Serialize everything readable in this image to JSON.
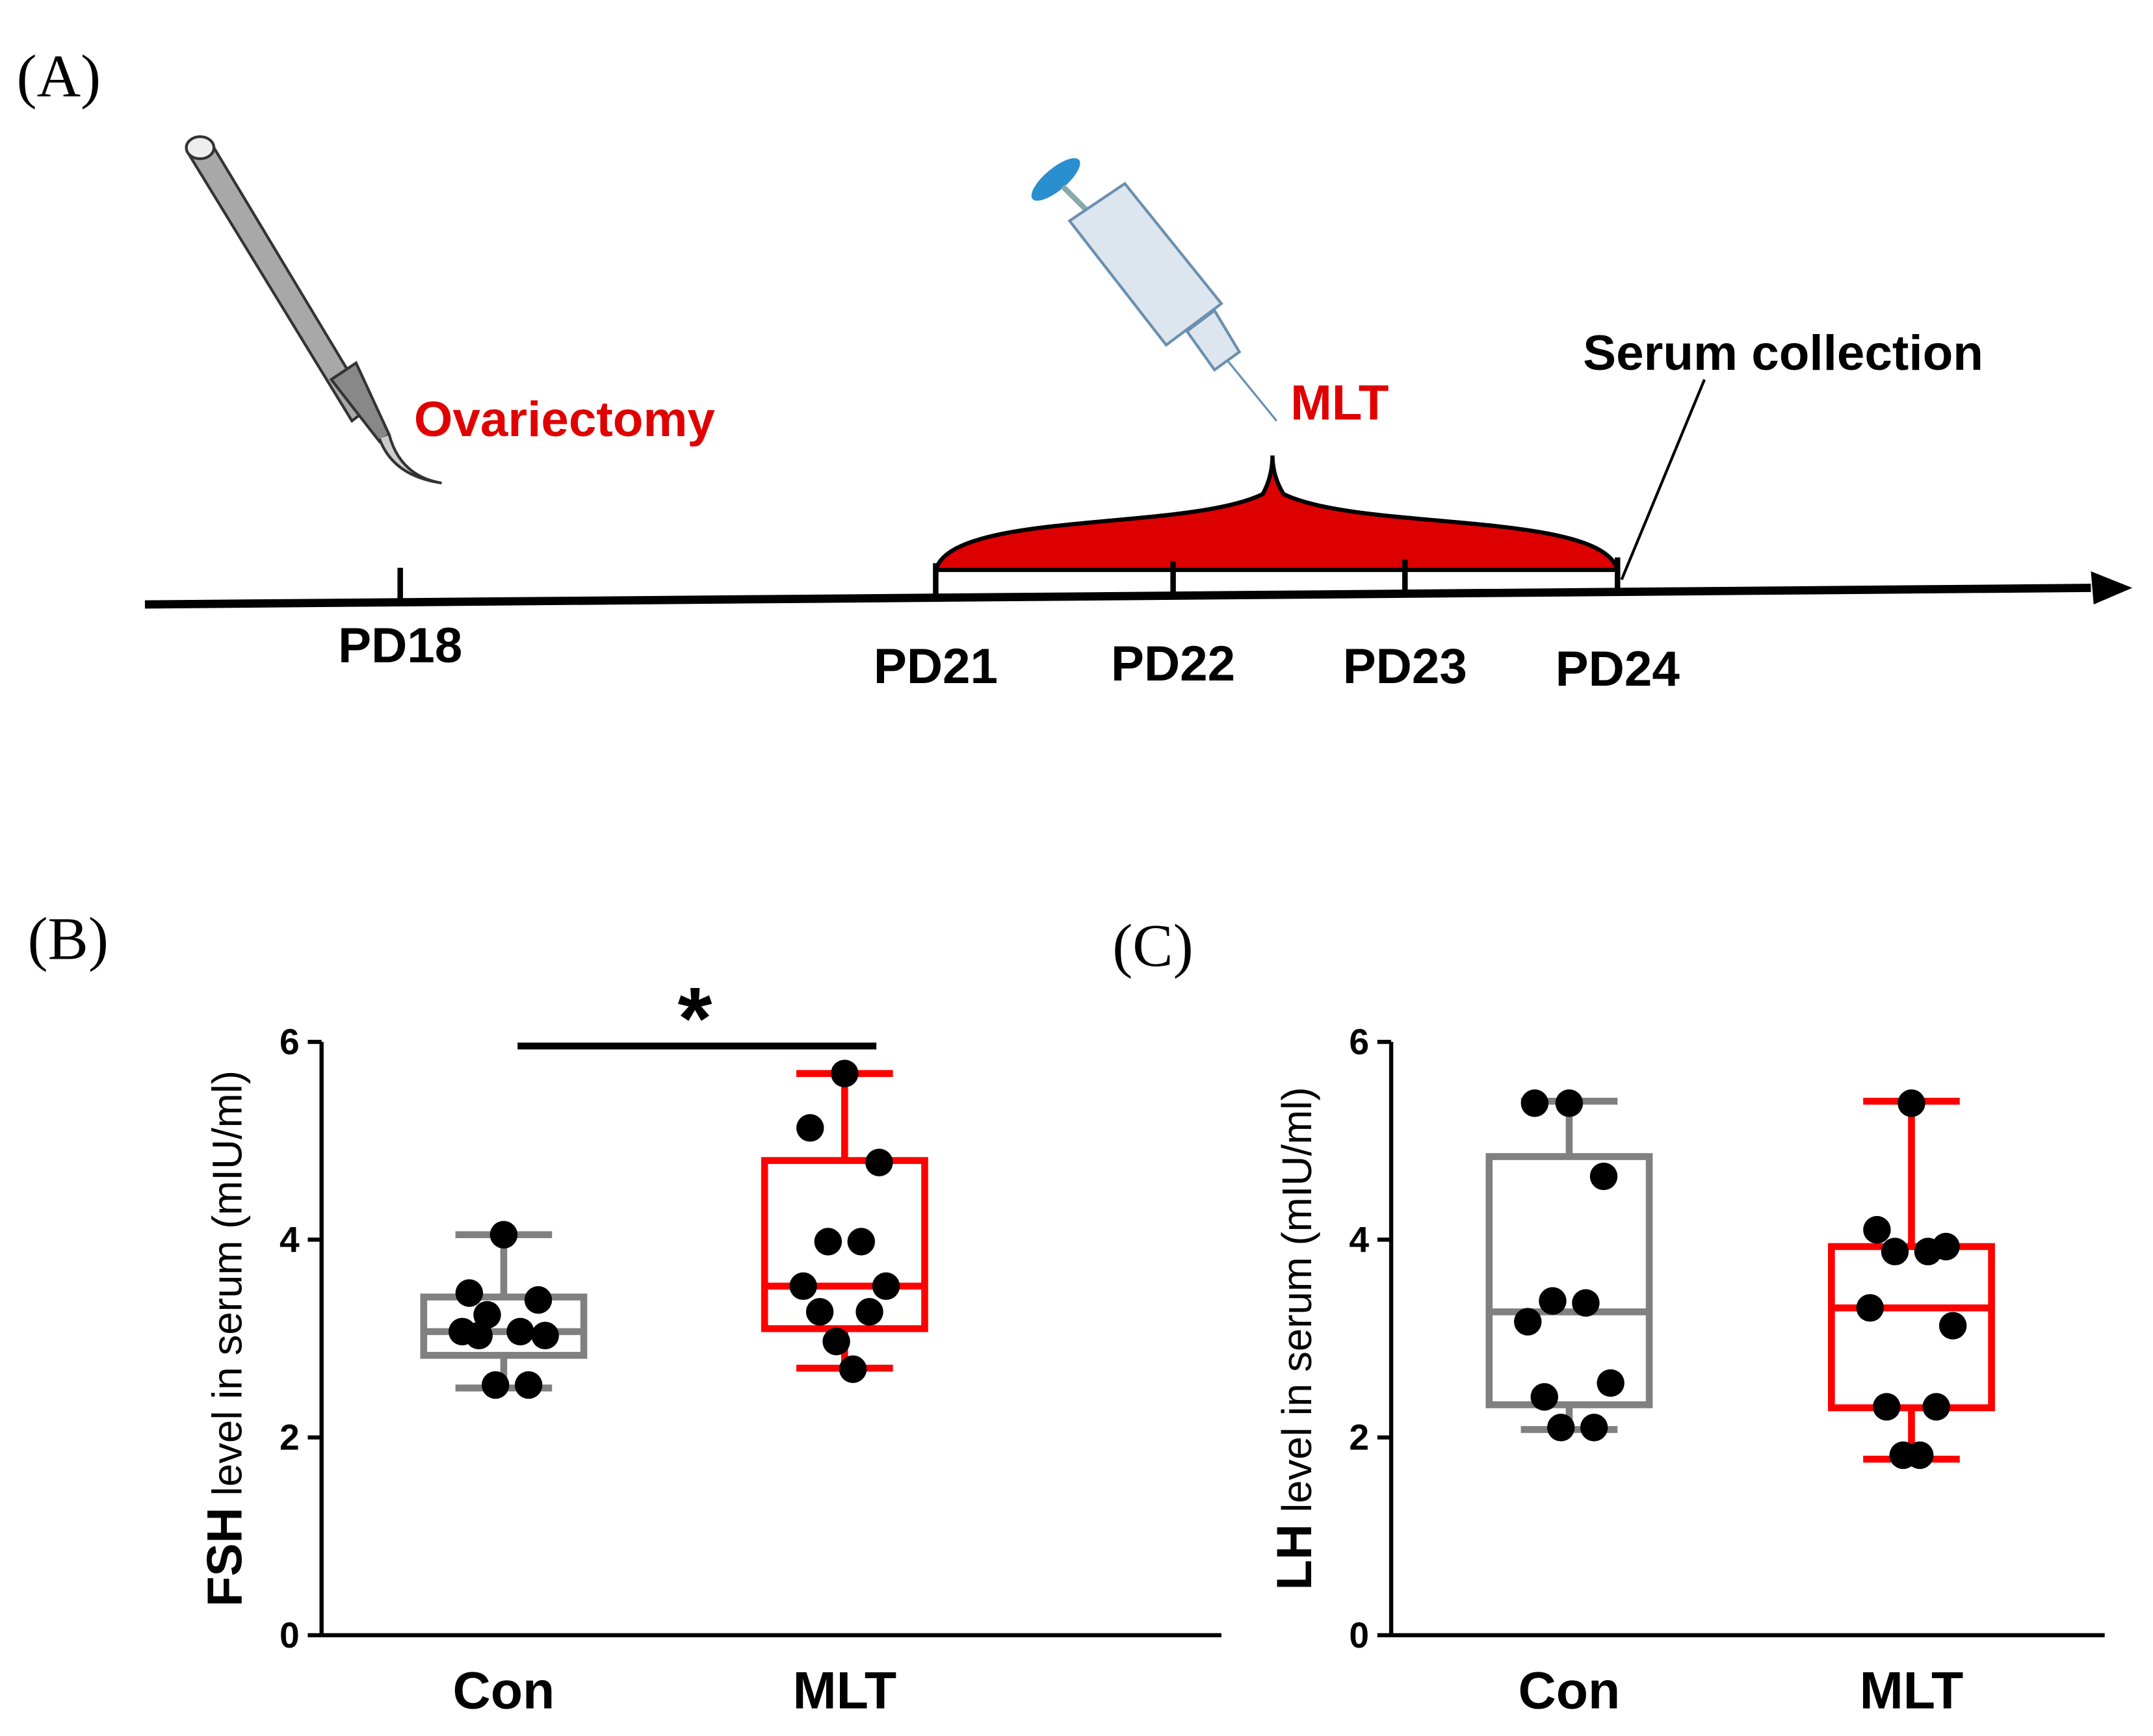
{
  "panel_labels": [
    "(A)",
    "(B)",
    "(C)"
  ],
  "timeline": {
    "events": [
      "Ovariectomy",
      "MLT",
      "Serum collection"
    ],
    "ticks": [
      "PD18",
      "PD21",
      "PD22",
      "PD23",
      "PD24"
    ]
  },
  "chart_data": [
    {
      "type": "box",
      "ylabel": [
        "FSH",
        "level in serum (mIU/ml)"
      ],
      "categories": [
        "Con",
        "MLT"
      ],
      "ylim": [
        0,
        6
      ],
      "yticks": [
        0,
        2,
        4,
        6
      ],
      "annotation": "*",
      "groups": [
        {
          "color": "#808080",
          "whisker_low": 2.5,
          "q1": 2.83,
          "median": 3.07,
          "q3": 3.42,
          "whisker_high": 4.05,
          "points": [
            4.05,
            3.46,
            3.39,
            3.24,
            3.07,
            3.07,
            3.03,
            3.03,
            2.53,
            2.53
          ]
        },
        {
          "color": "#ff0000",
          "whisker_low": 2.7,
          "q1": 3.1,
          "median": 3.53,
          "q3": 4.8,
          "whisker_high": 5.68,
          "points": [
            5.68,
            5.13,
            4.78,
            3.98,
            3.98,
            3.53,
            3.53,
            3.27,
            3.27,
            2.97,
            2.69
          ]
        }
      ]
    },
    {
      "type": "box",
      "ylabel": [
        "LH",
        "level in serum (mIU/ml)"
      ],
      "categories": [
        "Con",
        "MLT"
      ],
      "ylim": [
        0,
        6
      ],
      "yticks": [
        0,
        2,
        4,
        6
      ],
      "groups": [
        {
          "color": "#808080",
          "whisker_low": 2.08,
          "q1": 2.33,
          "median": 3.27,
          "q3": 4.84,
          "whisker_high": 5.4,
          "points": [
            5.38,
            5.38,
            4.64,
            3.38,
            3.36,
            3.17,
            2.55,
            2.41,
            2.1,
            2.1
          ]
        },
        {
          "color": "#ff0000",
          "whisker_low": 1.78,
          "q1": 2.3,
          "median": 3.31,
          "q3": 3.93,
          "whisker_high": 5.4,
          "points": [
            5.38,
            4.1,
            3.93,
            3.88,
            3.88,
            3.31,
            3.13,
            2.31,
            2.31,
            1.82,
            1.82
          ]
        }
      ]
    }
  ]
}
